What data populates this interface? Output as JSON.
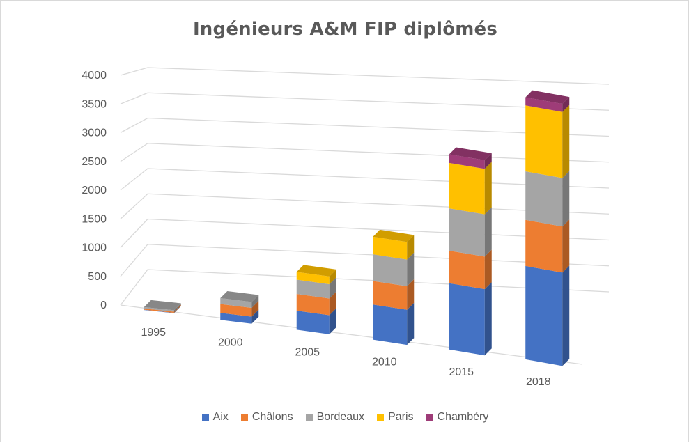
{
  "chart_data": {
    "type": "bar",
    "stacked": true,
    "three_d": true,
    "title": "Ingénieurs A&M FIP diplômés",
    "categories": [
      "1995",
      "2000",
      "2005",
      "2010",
      "2015",
      "2018"
    ],
    "y_ticks": [
      "0",
      "500",
      "1000",
      "1500",
      "2000",
      "2500",
      "3000",
      "3500",
      "4000"
    ],
    "ylim": [
      0,
      4000
    ],
    "grid": true,
    "legend_position": "bottom",
    "series": [
      {
        "name": "Aix",
        "color": "#4472C4",
        "values": [
          5,
          120,
          320,
          580,
          1080,
          1500
        ]
      },
      {
        "name": "Châlons",
        "color": "#ED7D31",
        "values": [
          20,
          150,
          280,
          390,
          530,
          740
        ]
      },
      {
        "name": "Bordeaux",
        "color": "#A5A5A5",
        "values": [
          25,
          100,
          240,
          440,
          690,
          780
        ]
      },
      {
        "name": "Paris",
        "color": "#FFC000",
        "values": [
          0,
          0,
          130,
          290,
          740,
          1060
        ]
      },
      {
        "name": "Chambéry",
        "color": "#9E3C78",
        "values": [
          0,
          0,
          0,
          0,
          140,
          130
        ]
      }
    ]
  }
}
